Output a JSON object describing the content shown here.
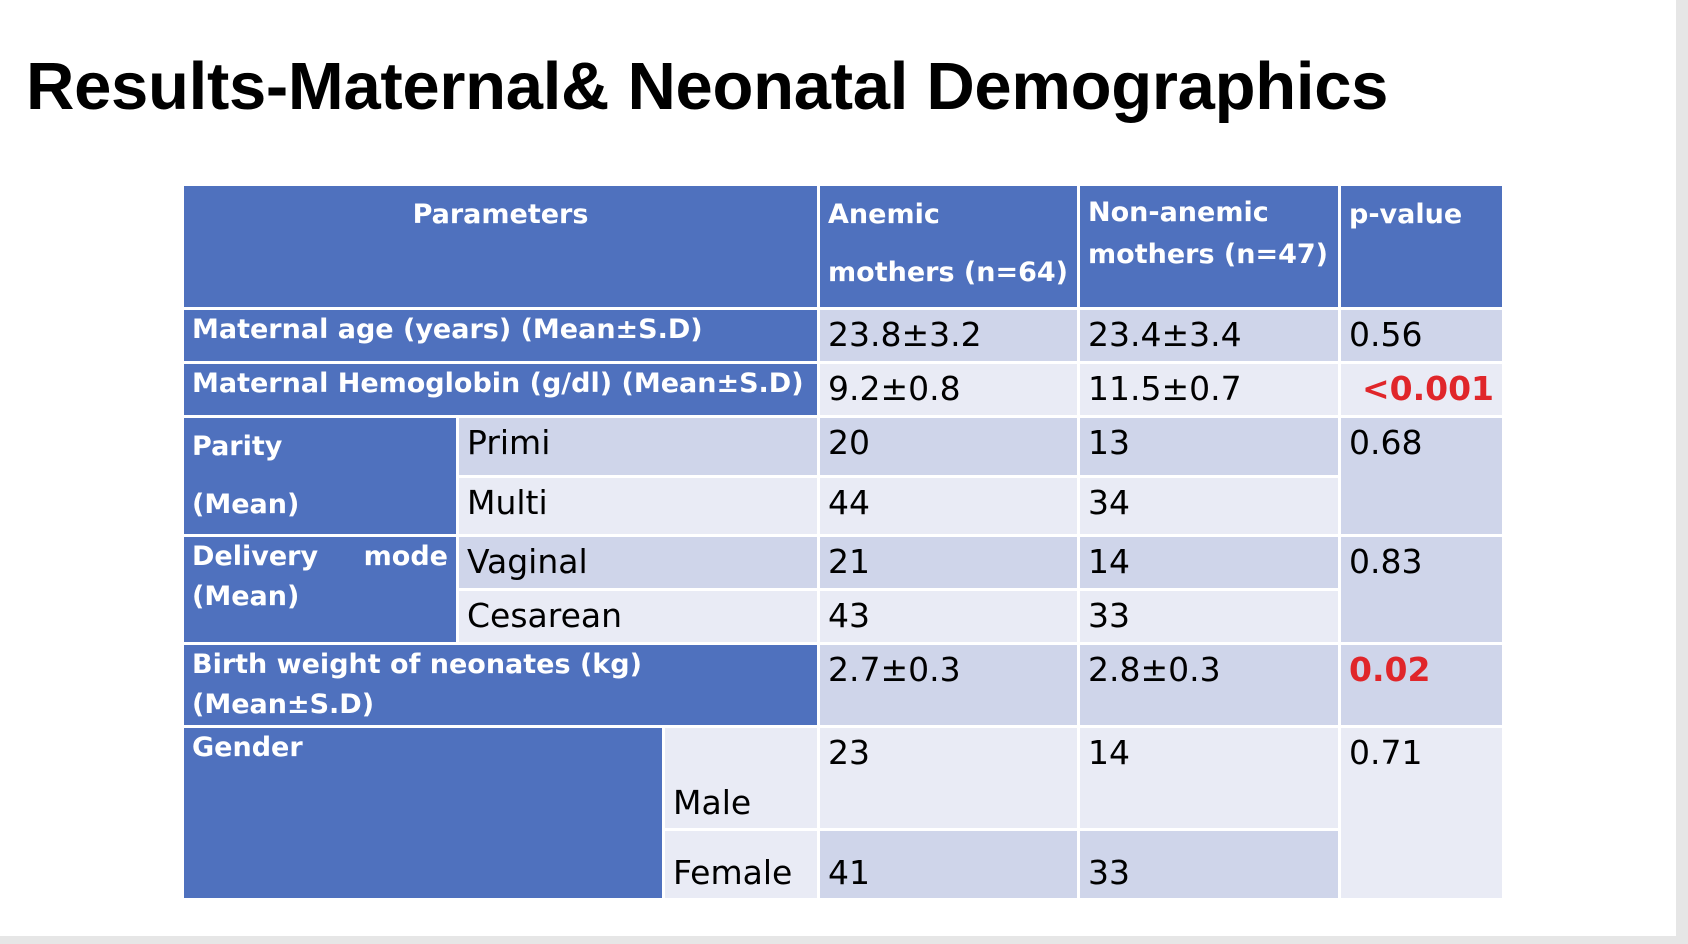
{
  "slide": {
    "title": "Results-Maternal& Neonatal Demographics"
  },
  "table": {
    "headers": {
      "parameters": "Parameters",
      "anemic": "Anemic mothers (n=64)",
      "non_anemic": "Non-anemic mothers (n=47)",
      "pvalue": "p-value"
    },
    "maternal_age": {
      "label": "Maternal age (years) (Mean±S.D)",
      "anemic": "23.8±3.2",
      "non_anemic": "23.4±3.4",
      "pvalue": "0.56"
    },
    "hemoglobin": {
      "label": "Maternal Hemoglobin (g/dl) (Mean±S.D)",
      "anemic": "9.2±0.8",
      "non_anemic": "11.5±0.7",
      "pvalue": "<0.001"
    },
    "parity": {
      "label_1": "Parity",
      "label_2": "(Mean)",
      "pvalue": "0.68",
      "rows": [
        {
          "sub": "Primi",
          "anemic": "20",
          "non_anemic": "13"
        },
        {
          "sub": "Multi",
          "anemic": "44",
          "non_anemic": "34"
        }
      ]
    },
    "delivery": {
      "label_word1": "Delivery",
      "label_word2": "mode",
      "label_2": "(Mean)",
      "pvalue": "0.83",
      "rows": [
        {
          "sub": "Vaginal",
          "anemic": "21",
          "non_anemic": "14"
        },
        {
          "sub": "Cesarean",
          "anemic": "43",
          "non_anemic": "33"
        }
      ]
    },
    "birth_weight": {
      "label": "Birth weight of neonates (kg) (Mean±S.D)",
      "anemic": "2.7±0.3",
      "non_anemic": "2.8±0.3",
      "pvalue": "0.02"
    },
    "gender": {
      "label": "Gender",
      "pvalue": "0.71",
      "rows": [
        {
          "sub": "Male",
          "anemic": "23",
          "non_anemic": "14"
        },
        {
          "sub": "Female",
          "anemic": "41",
          "non_anemic": "33"
        }
      ]
    }
  },
  "colors": {
    "header_blue": "#4f71be",
    "row_dark": "#cfd5ea",
    "row_light": "#e9ebf5",
    "significant_red": "#e0262a"
  }
}
